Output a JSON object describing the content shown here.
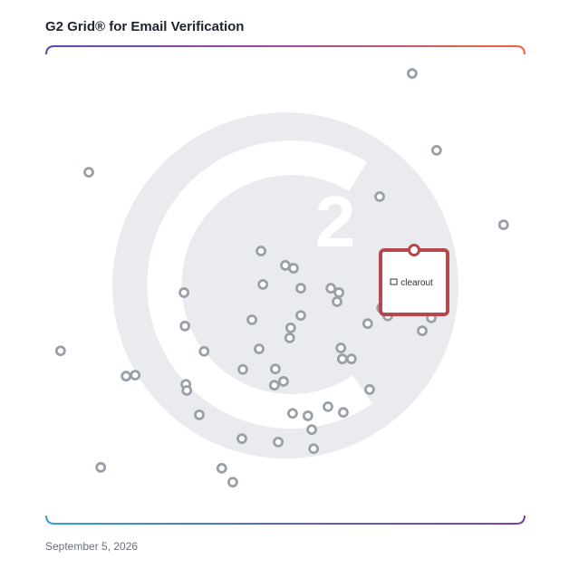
{
  "chart_data": {
    "type": "scatter",
    "title": "G2 Grid® for Email Verification",
    "footer": "September 5, 2026",
    "xlim": [
      0,
      100
    ],
    "ylim": [
      0,
      100
    ],
    "color": "#9aa0a8",
    "series": [
      {
        "x": [
          76.5,
          81.6,
          8.9,
          69.7,
          95.6,
          44.9,
          50.0,
          51.7,
          45.3,
          53.2,
          59.5,
          61.2,
          28.8,
          60.8,
          70.1,
          71.4,
          80.5,
          53.2,
          43.0,
          29.0,
          67.2,
          51.1,
          78.6,
          50.9,
          3.0,
          33.0,
          44.5,
          61.6,
          61.9,
          63.8,
          41.1,
          47.9,
          16.7,
          18.6,
          47.7,
          49.6,
          29.2,
          29.4,
          67.6,
          58.9,
          62.1,
          51.5,
          54.7,
          32.0,
          55.5,
          40.9,
          48.5,
          55.9,
          11.4,
          36.7,
          39.0
        ],
        "values": [
          94.3,
          78.2,
          73.6,
          68.5,
          62.6,
          57.1,
          54.1,
          53.5,
          50.1,
          49.3,
          49.3,
          48.4,
          48.4,
          46.5,
          45.2,
          43.5,
          43.1,
          43.6,
          42.7,
          41.4,
          41.9,
          41.0,
          40.4,
          38.9,
          36.2,
          36.1,
          36.6,
          36.8,
          34.5,
          34.5,
          32.3,
          32.4,
          30.9,
          31.1,
          29.0,
          29.8,
          29.2,
          27.9,
          28.1,
          24.5,
          23.3,
          23.1,
          22.6,
          22.8,
          19.7,
          17.8,
          17.1,
          15.7,
          11.8,
          11.6,
          8.7
        ]
      }
    ],
    "highlight": {
      "label": "clearout",
      "x": 76.9,
      "y": 57.3,
      "color": "#b5474d"
    }
  }
}
